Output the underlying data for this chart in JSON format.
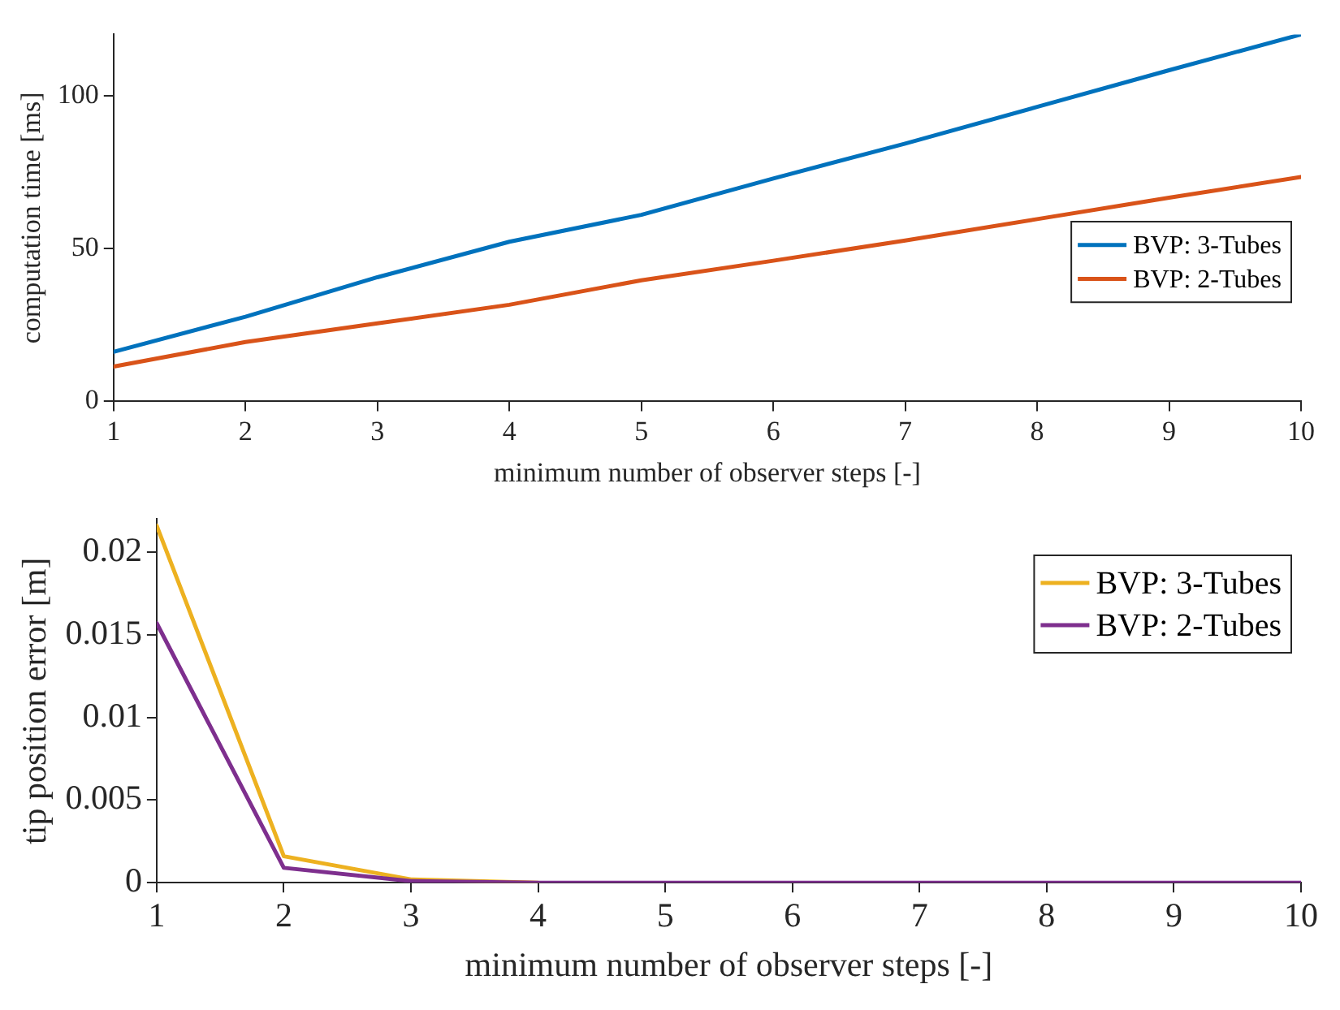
{
  "chart_data": [
    {
      "type": "line",
      "xlabel": "minimum number of observer steps [-]",
      "ylabel": "computation time [ms]",
      "x": [
        1,
        2,
        3,
        4,
        5,
        6,
        7,
        8,
        9,
        10
      ],
      "xlim": [
        1,
        10
      ],
      "xticks": [
        1,
        2,
        3,
        4,
        5,
        6,
        7,
        8,
        9,
        10
      ],
      "ylim": [
        0,
        120
      ],
      "yticks": [
        0,
        50,
        100
      ],
      "grid": false,
      "legend": "right",
      "marker": "none",
      "line_style": "solid",
      "series": [
        {
          "name": "BVP: 3-Tubes",
          "color": "#0072bd",
          "values": [
            16.2,
            27.7,
            40.6,
            52.2,
            61,
            72.9,
            84.3,
            96.3,
            108.3,
            120
          ]
        },
        {
          "name": "BVP: 2-Tubes",
          "color": "#d95319",
          "values": [
            11.4,
            19.4,
            25.5,
            31.6,
            39.6,
            46,
            52.6,
            59.6,
            66.6,
            73.4
          ]
        }
      ]
    },
    {
      "type": "line",
      "xlabel": "minimum number of observer steps [-]",
      "ylabel": "tip position error [m]",
      "x": [
        1,
        2,
        3,
        4,
        5,
        6,
        7,
        8,
        9,
        10
      ],
      "xlim": [
        1,
        10
      ],
      "xticks": [
        1,
        2,
        3,
        4,
        5,
        6,
        7,
        8,
        9,
        10
      ],
      "ylim": [
        0,
        0.022
      ],
      "yticks": [
        0,
        0.005,
        0.01,
        0.015,
        0.02
      ],
      "grid": false,
      "legend": "top right",
      "marker": "none",
      "line_style": "solid",
      "series": [
        {
          "name": "BVP: 3-Tubes",
          "color": "#edb120",
          "values": [
            0.0216,
            0.0016,
            0.0002,
            0,
            null,
            null,
            null,
            null,
            null,
            null
          ]
        },
        {
          "name": "BVP: 2-Tubes",
          "color": "#7e2f8e",
          "values": [
            0.0157,
            0.0009,
            0.0001,
            0,
            0,
            0,
            0,
            0,
            0,
            0
          ]
        }
      ]
    }
  ]
}
